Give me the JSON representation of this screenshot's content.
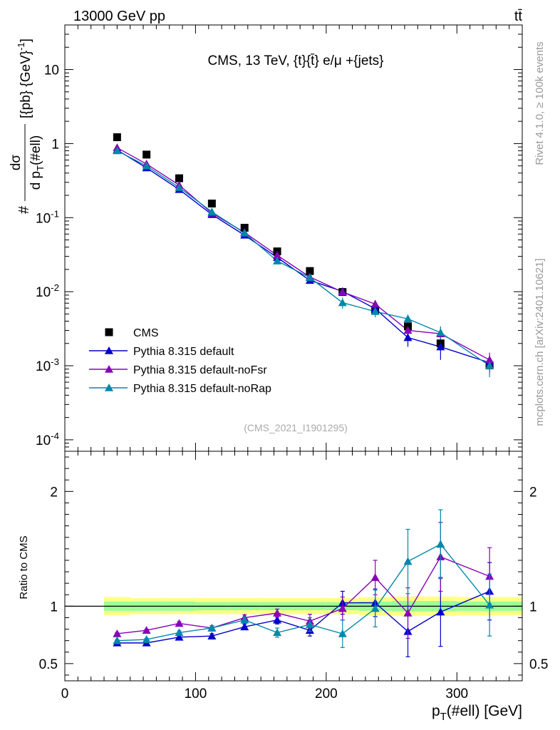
{
  "header": {
    "left": "13000 GeV pp",
    "right": "tt̄"
  },
  "side_labels": {
    "rivet": "Rivet 4.1.0, ≥ 100k events",
    "mcplots": "mcplots.cern.ch [arXiv:2401.10621]"
  },
  "chart_data": [
    {
      "type": "scatter",
      "panel": "main",
      "title": "CMS, 13 TeV, {t}{t̄} e/μ +{jets}",
      "watermark": "(CMS_2021_I1901295)",
      "ylabel": "#dσ/d p_T(#ell) [{pb} {GeV}^-1]",
      "xlabel": "",
      "yscale": "log",
      "xlim": [
        0,
        350
      ],
      "ylim": [
        7e-05,
        40
      ],
      "y_ticks": [
        {
          "value": 10,
          "label": "10"
        },
        {
          "value": 1,
          "label": "1"
        },
        {
          "value": 0.1,
          "label": "10^-1"
        },
        {
          "value": 0.01,
          "label": "10^-2"
        },
        {
          "value": 0.001,
          "label": "10^-3"
        },
        {
          "value": 0.0001,
          "label": "10^-4"
        }
      ],
      "legend_position": "bottom-left",
      "series": [
        {
          "name": "CMS",
          "color": "#000000",
          "marker": "square",
          "x": [
            40,
            62.5,
            87.5,
            112.5,
            137.5,
            162.5,
            187.5,
            212.5,
            237.5,
            262.5,
            287.5,
            325
          ],
          "y": [
            1.22,
            0.71,
            0.34,
            0.155,
            0.073,
            0.035,
            0.019,
            0.0099,
            0.0057,
            0.0034,
            0.002,
            0.00101
          ]
        },
        {
          "name": "Pythia 8.315 default",
          "color": "#0000cc",
          "marker": "triangle",
          "x": [
            40,
            62.5,
            87.5,
            112.5,
            137.5,
            162.5,
            187.5,
            212.5,
            237.5,
            262.5,
            287.5,
            325
          ],
          "y": [
            0.82,
            0.47,
            0.24,
            0.11,
            0.058,
            0.029,
            0.0142,
            0.0101,
            0.0059,
            0.0024,
            0.0018,
            0.0011
          ],
          "yerr": [
            0.01,
            0.008,
            0.005,
            0.003,
            0.002,
            0.0012,
            0.0009,
            0.0012,
            0.0009,
            0.0006,
            0.0006,
            0.0003
          ]
        },
        {
          "name": "Pythia 8.315 default-noFsr",
          "color": "#8800bb",
          "marker": "triangle",
          "x": [
            40,
            62.5,
            87.5,
            112.5,
            137.5,
            162.5,
            187.5,
            212.5,
            237.5,
            262.5,
            287.5,
            325
          ],
          "y": [
            0.88,
            0.53,
            0.275,
            0.115,
            0.063,
            0.031,
            0.0158,
            0.0099,
            0.0068,
            0.003,
            0.0027,
            0.0012
          ],
          "yerr": [
            0.01,
            0.008,
            0.005,
            0.003,
            0.002,
            0.0012,
            0.0009,
            0.0012,
            0.0009,
            0.0006,
            0.0006,
            0.0003
          ]
        },
        {
          "name": "Pythia 8.315 default-noRap",
          "color": "#0088aa",
          "marker": "triangle",
          "x": [
            40,
            62.5,
            87.5,
            112.5,
            137.5,
            162.5,
            187.5,
            212.5,
            237.5,
            262.5,
            287.5,
            325
          ],
          "y": [
            0.8,
            0.5,
            0.255,
            0.12,
            0.062,
            0.026,
            0.0155,
            0.0071,
            0.0054,
            0.0043,
            0.0028,
            0.001
          ],
          "yerr": [
            0.01,
            0.008,
            0.005,
            0.003,
            0.002,
            0.0012,
            0.0009,
            0.0012,
            0.0009,
            0.0006,
            0.0006,
            0.0003
          ]
        }
      ]
    },
    {
      "type": "line",
      "panel": "ratio",
      "ylabel": "Ratio to CMS",
      "xlabel": "p_T(#ell) [GeV]",
      "xlim": [
        0,
        350
      ],
      "ylim": [
        0.35,
        2.35
      ],
      "y_ticks": [
        {
          "value": 2,
          "label": "2"
        },
        {
          "value": 1,
          "label": "1"
        },
        {
          "value": 0.5,
          "label": "0.5"
        }
      ],
      "x_ticks": [
        {
          "value": 0,
          "label": "0"
        },
        {
          "value": 100,
          "label": "100"
        },
        {
          "value": 200,
          "label": "200"
        },
        {
          "value": 300,
          "label": "300"
        }
      ],
      "band": {
        "x_edges": [
          30,
          50,
          75,
          100,
          125,
          150,
          175,
          200,
          225,
          250,
          275,
          300,
          350
        ],
        "inner_lo": [
          0.96,
          0.96,
          0.96,
          0.965,
          0.965,
          0.965,
          0.965,
          0.965,
          0.96,
          0.955,
          0.955,
          0.96
        ],
        "inner_hi": [
          1.04,
          1.04,
          1.04,
          1.035,
          1.035,
          1.035,
          1.035,
          1.035,
          1.04,
          1.045,
          1.045,
          1.04
        ],
        "outer_lo": [
          0.92,
          0.93,
          0.93,
          0.93,
          0.93,
          0.93,
          0.93,
          0.93,
          0.92,
          0.915,
          0.915,
          0.92
        ],
        "outer_hi": [
          1.08,
          1.07,
          1.07,
          1.07,
          1.07,
          1.07,
          1.07,
          1.07,
          1.08,
          1.085,
          1.085,
          1.08
        ],
        "inner_color": "#99ff99",
        "outer_color": "#ffff88"
      },
      "series": [
        {
          "name": "Pythia 8.315 default",
          "color": "#0000cc",
          "x": [
            40,
            62.5,
            87.5,
            112.5,
            137.5,
            162.5,
            187.5,
            212.5,
            237.5,
            262.5,
            287.5,
            325
          ],
          "y": [
            0.68,
            0.68,
            0.73,
            0.74,
            0.82,
            0.88,
            0.79,
            1.03,
            1.03,
            0.78,
            0.95,
            1.13
          ],
          "yerr": [
            0.01,
            0.01,
            0.015,
            0.02,
            0.025,
            0.035,
            0.05,
            0.1,
            0.12,
            0.22,
            0.3,
            0.25
          ]
        },
        {
          "name": "Pythia 8.315 default-noFsr",
          "color": "#8800bb",
          "x": [
            40,
            62.5,
            87.5,
            112.5,
            137.5,
            162.5,
            187.5,
            212.5,
            237.5,
            262.5,
            287.5,
            325
          ],
          "y": [
            0.76,
            0.79,
            0.85,
            0.81,
            0.9,
            0.94,
            0.87,
            0.98,
            1.25,
            0.94,
            1.43,
            1.26
          ],
          "yerr": [
            0.01,
            0.01,
            0.015,
            0.02,
            0.025,
            0.035,
            0.06,
            0.1,
            0.15,
            0.22,
            0.3,
            0.25
          ]
        },
        {
          "name": "Pythia 8.315 default-noRap",
          "color": "#0088aa",
          "x": [
            40,
            62.5,
            87.5,
            112.5,
            137.5,
            162.5,
            187.5,
            212.5,
            237.5,
            262.5,
            287.5,
            325
          ],
          "y": [
            0.7,
            0.71,
            0.77,
            0.81,
            0.88,
            0.77,
            0.84,
            0.76,
            0.98,
            1.39,
            1.54,
            1.01
          ],
          "yerr": [
            0.01,
            0.01,
            0.015,
            0.02,
            0.025,
            0.04,
            0.06,
            0.12,
            0.16,
            0.28,
            0.3,
            0.27
          ]
        }
      ]
    }
  ]
}
